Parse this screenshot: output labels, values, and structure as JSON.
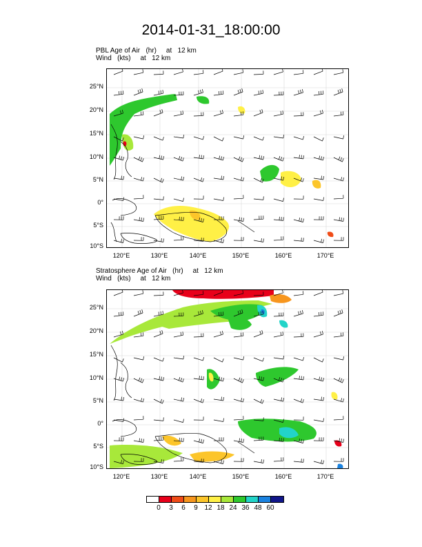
{
  "title": "2014-01-31_18:00:00",
  "panels": [
    {
      "label1": "PBL Age of Air   (hr)     at   12 km",
      "label2": "Wind   (kts)     at   12 km"
    },
    {
      "label1": "Stratosphere Age of Air   (hr)     at   12 km",
      "label2": "Wind   (kts)     at   12 km"
    }
  ],
  "lat_ticks": [
    "25°N",
    "20°N",
    "15°N",
    "10°N",
    "5°N",
    "0°",
    "5°S",
    "10°S"
  ],
  "lon_ticks": [
    "120°E",
    "130°E",
    "140°E",
    "150°E",
    "160°E",
    "170°E"
  ],
  "colorbar": {
    "labels": [
      "0",
      "3",
      "6",
      "9",
      "12",
      "18",
      "24",
      "36",
      "48",
      "60"
    ],
    "colors": [
      "#ffffff",
      "#e8001a",
      "#f04c18",
      "#f7961e",
      "#fcc52a",
      "#fff046",
      "#a8e83a",
      "#2ec82e",
      "#22d4c8",
      "#1a82e0",
      "#10168a"
    ]
  }
}
